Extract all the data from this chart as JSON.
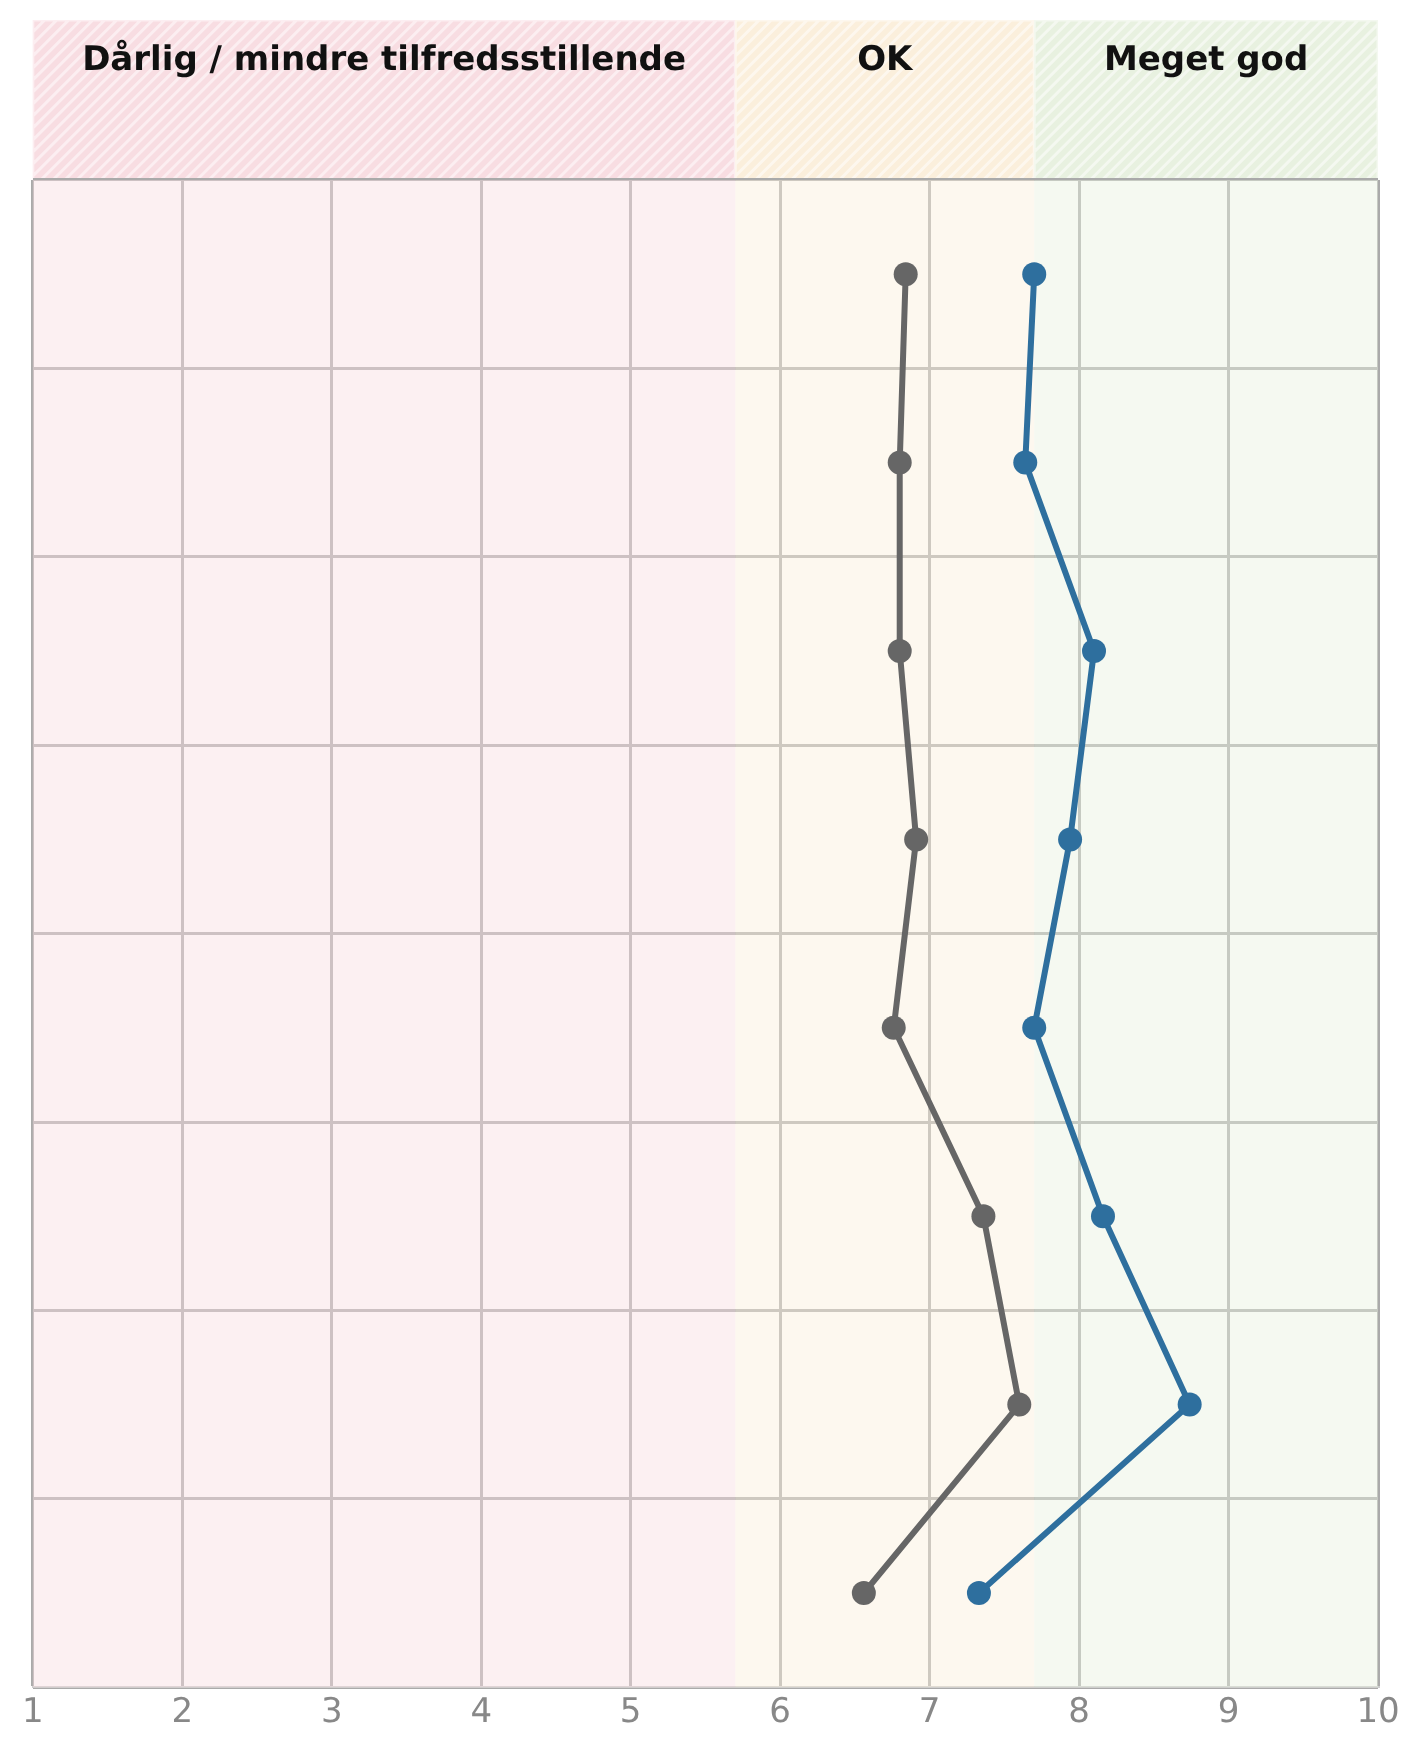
{
  "chart_data": {
    "type": "line",
    "orientation": "horizontal",
    "categories": [
      null,
      null,
      null,
      null,
      null,
      null,
      null,
      null
    ],
    "series": [
      {
        "color": "#666666",
        "values": [
          6.84,
          6.8,
          6.8,
          6.91,
          6.76,
          7.36,
          7.6,
          6.56
        ]
      },
      {
        "color": "#2e6f9e",
        "values": [
          7.7,
          7.64,
          8.1,
          7.94,
          7.7,
          8.16,
          8.74,
          7.33
        ]
      }
    ],
    "xlim": [
      1,
      10
    ],
    "xticks": [
      1,
      2,
      3,
      4,
      5,
      6,
      7,
      8,
      9,
      10
    ],
    "grid": true,
    "tick_labels": "x",
    "marker": "circle",
    "line_style": "solid",
    "legend": false,
    "bands": [
      {
        "axis": "x",
        "from": 1,
        "to": 5.7,
        "label": "Dårlig / mindre tilfredsstillende",
        "color": "#f8dde2"
      },
      {
        "axis": "x",
        "from": 5.7,
        "to": 7.7,
        "label": "OK",
        "color": "#fbefdc"
      },
      {
        "axis": "x",
        "from": 7.7,
        "to": 10,
        "label": "Meget god",
        "color": "#e8f1e0"
      }
    ]
  }
}
